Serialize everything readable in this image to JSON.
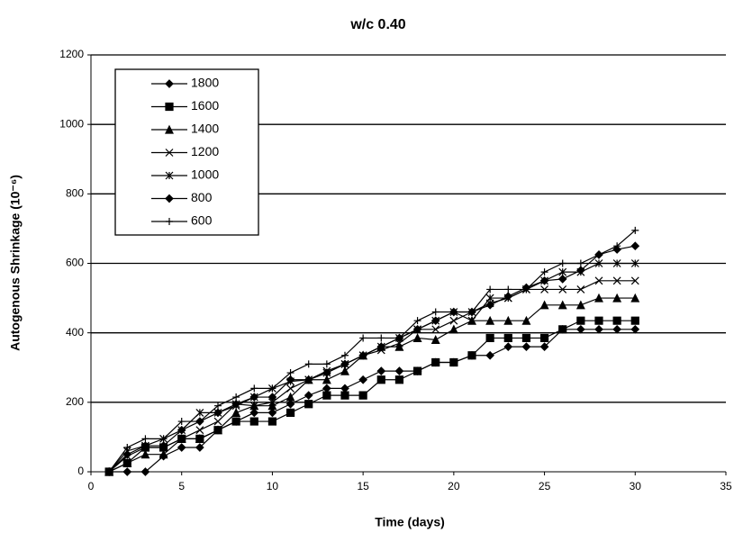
{
  "chart_data": {
    "type": "line",
    "title": "w/c 0.40",
    "x_label": "Time (days)",
    "y_label": "Autogenous Shrinkage (10⁻⁶)",
    "x": [
      1,
      2,
      3,
      4,
      5,
      6,
      7,
      8,
      9,
      10,
      11,
      12,
      13,
      14,
      15,
      16,
      17,
      18,
      19,
      20,
      21,
      22,
      23,
      24,
      25,
      26,
      27,
      28,
      29,
      30
    ],
    "series": [
      {
        "name": "1800",
        "color": "#000000",
        "marker": "diamond",
        "values": [
          0,
          0,
          0,
          45,
          70,
          70,
          120,
          145,
          170,
          170,
          195,
          220,
          240,
          240,
          265,
          290,
          290,
          290,
          315,
          315,
          335,
          335,
          360,
          360,
          360,
          410,
          410,
          410,
          410,
          410
        ]
      },
      {
        "name": "1600",
        "color": "#000000",
        "marker": "square",
        "values": [
          0,
          25,
          70,
          70,
          95,
          95,
          120,
          145,
          145,
          145,
          170,
          195,
          220,
          220,
          220,
          265,
          265,
          290,
          315,
          315,
          335,
          385,
          385,
          385,
          385,
          410,
          435,
          435,
          435,
          435
        ]
      },
      {
        "name": "1400",
        "color": "#000000",
        "marker": "triangle",
        "values": [
          0,
          25,
          50,
          50,
          95,
          95,
          120,
          170,
          190,
          190,
          215,
          265,
          265,
          290,
          335,
          360,
          360,
          385,
          380,
          410,
          435,
          435,
          435,
          435,
          480,
          480,
          480,
          500,
          500,
          500
        ]
      },
      {
        "name": "1200",
        "color": "#000000",
        "marker": "x",
        "values": [
          0,
          45,
          70,
          70,
          95,
          120,
          145,
          195,
          190,
          200,
          240,
          265,
          290,
          310,
          335,
          350,
          370,
          410,
          410,
          435,
          460,
          485,
          500,
          525,
          525,
          525,
          525,
          550,
          550,
          550
        ]
      },
      {
        "name": "1000",
        "color": "#000000",
        "marker": "star",
        "values": [
          0,
          60,
          75,
          95,
          120,
          170,
          170,
          190,
          215,
          240,
          260,
          265,
          285,
          310,
          335,
          360,
          385,
          410,
          435,
          460,
          435,
          500,
          500,
          525,
          550,
          575,
          575,
          600,
          600,
          600
        ]
      },
      {
        "name": "800",
        "color": "#000000",
        "marker": "diamond",
        "values": [
          0,
          50,
          75,
          75,
          120,
          145,
          170,
          195,
          215,
          215,
          265,
          265,
          285,
          310,
          335,
          360,
          385,
          410,
          435,
          460,
          460,
          480,
          505,
          530,
          550,
          555,
          580,
          625,
          640,
          650
        ]
      },
      {
        "name": "600",
        "color": "#000000",
        "marker": "plus",
        "values": [
          0,
          70,
          95,
          95,
          145,
          145,
          190,
          215,
          240,
          240,
          285,
          310,
          310,
          335,
          385,
          385,
          385,
          435,
          460,
          460,
          460,
          525,
          525,
          525,
          575,
          600,
          600,
          625,
          650,
          695
        ]
      }
    ],
    "xlim": [
      0,
      35
    ],
    "xticks": [
      0,
      5,
      10,
      15,
      20,
      25,
      30,
      35
    ],
    "ylim": [
      0,
      1200
    ],
    "yticks": [
      0,
      200,
      400,
      600,
      800,
      1000,
      1200
    ],
    "grid": true,
    "legend": "upper left"
  }
}
